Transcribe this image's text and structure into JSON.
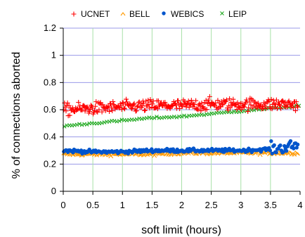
{
  "chart_data": {
    "type": "scatter",
    "title": "",
    "xlabel": "soft limit (hours)",
    "ylabel": "% of connections aborted",
    "xlim": [
      0,
      4
    ],
    "ylim": [
      0,
      1.2
    ],
    "xticks": [
      "0",
      "0.5",
      "1",
      "1.5",
      "2",
      "2.5",
      "3",
      "3.5",
      "4"
    ],
    "yticks": [
      "0",
      "0.2",
      "0.4",
      "0.6",
      "0.8",
      "1",
      "1.2"
    ],
    "grid": {
      "horizontal": true,
      "vertical": true
    },
    "legend_position": "top",
    "series": [
      {
        "name": "UCNET",
        "marker": "plus",
        "color": "#ff0000",
        "trend": [
          [
            0,
            0.6
          ],
          [
            0.5,
            0.61
          ],
          [
            1,
            0.62
          ],
          [
            1.5,
            0.63
          ],
          [
            2,
            0.63
          ],
          [
            2.5,
            0.64
          ],
          [
            3,
            0.64
          ],
          [
            3.5,
            0.64
          ],
          [
            4,
            0.64
          ]
        ],
        "spread": 0.045,
        "count": 320
      },
      {
        "name": "BELL",
        "marker": "caret",
        "color": "#ff9900",
        "trend": [
          [
            0,
            0.27
          ],
          [
            0.5,
            0.27
          ],
          [
            1,
            0.27
          ],
          [
            1.5,
            0.27
          ],
          [
            2,
            0.28
          ],
          [
            2.5,
            0.28
          ],
          [
            3,
            0.28
          ],
          [
            3.5,
            0.28
          ],
          [
            4,
            0.28
          ]
        ],
        "spread": 0.012,
        "count": 200
      },
      {
        "name": "WEBICS",
        "marker": "dot",
        "color": "#0055cc",
        "trend": [
          [
            0,
            0.3
          ],
          [
            0.5,
            0.29
          ],
          [
            1,
            0.29
          ],
          [
            1.5,
            0.3
          ],
          [
            2,
            0.3
          ],
          [
            2.5,
            0.3
          ],
          [
            3,
            0.3
          ],
          [
            3.5,
            0.31
          ],
          [
            3.7,
            0.32
          ],
          [
            4,
            0.34
          ]
        ],
        "spread": 0.013,
        "count": 230
      },
      {
        "name": "LEIP",
        "marker": "x",
        "color": "#22aa22",
        "trend": [
          [
            0,
            0.48
          ],
          [
            0.5,
            0.5
          ],
          [
            1,
            0.52
          ],
          [
            1.5,
            0.54
          ],
          [
            2,
            0.55
          ],
          [
            2.5,
            0.57
          ],
          [
            3,
            0.59
          ],
          [
            3.5,
            0.61
          ],
          [
            4,
            0.63
          ]
        ],
        "spread": 0.006,
        "count": 95
      }
    ]
  }
}
